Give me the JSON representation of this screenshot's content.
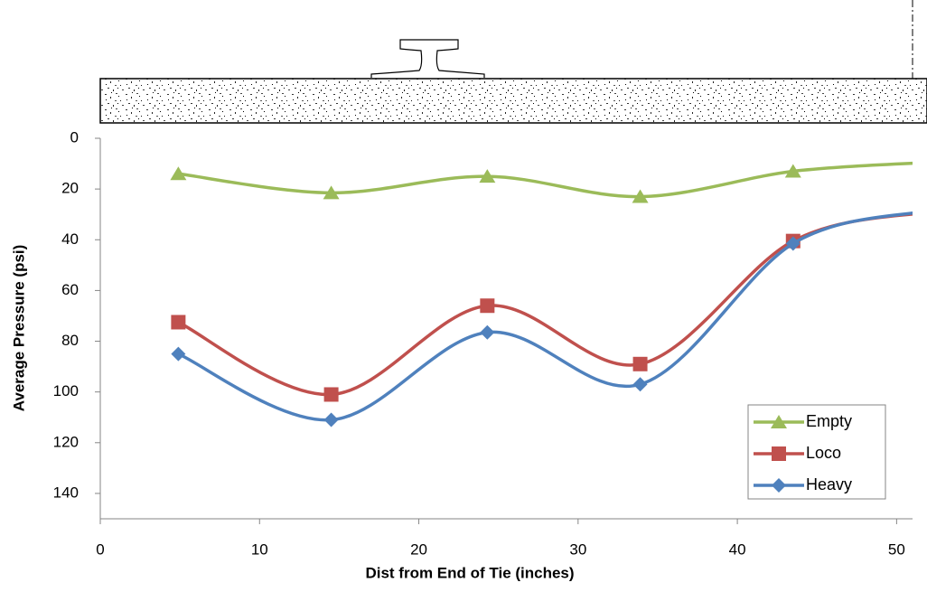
{
  "chart_data": {
    "type": "line",
    "x_label": "Dist from End of Tie (inches)",
    "y_label": "Average Pressure (psi)",
    "x": [
      4.9,
      14.5,
      24.3,
      33.9,
      43.5,
      52
    ],
    "series": [
      {
        "name": "Empty",
        "color": "#9bbb59",
        "marker": "triangle",
        "values": [
          14,
          21.5,
          15,
          23,
          13,
          9.5
        ]
      },
      {
        "name": "Loco",
        "color": "#c0504d",
        "marker": "square",
        "values": [
          72.5,
          101,
          66,
          89,
          40.5,
          29
        ]
      },
      {
        "name": "Heavy",
        "color": "#4f81bd",
        "marker": "diamond",
        "values": [
          85,
          111,
          76.5,
          97,
          41.5,
          28.5
        ]
      }
    ],
    "xlim": [
      0,
      51
    ],
    "xticks": [
      0,
      10,
      20,
      30,
      40,
      50
    ],
    "ylim": [
      0,
      150
    ],
    "yticks": [
      0,
      20,
      40,
      60,
      80,
      100,
      120,
      140
    ],
    "y_inverted": true,
    "smooth": true,
    "legend": "lower right"
  }
}
